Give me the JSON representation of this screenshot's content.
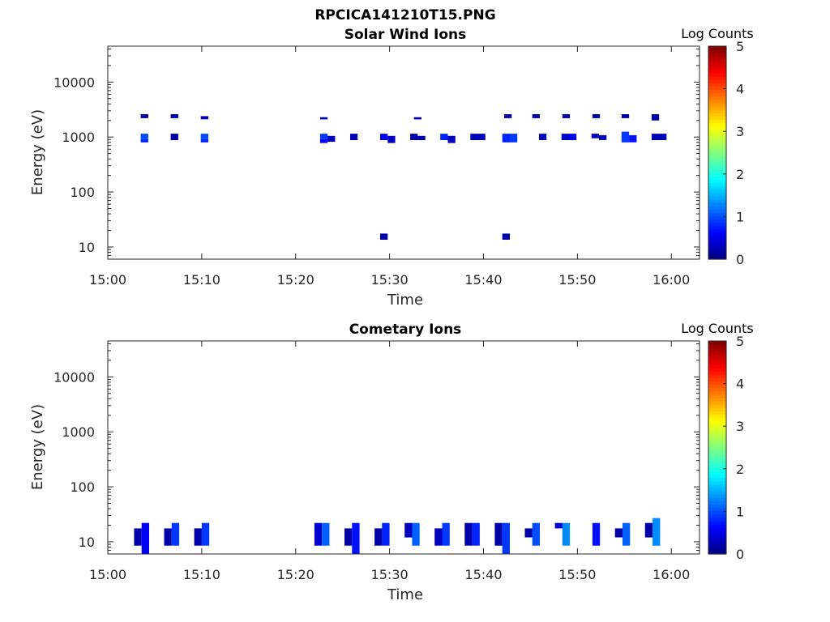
{
  "figure": {
    "title": "RPCICA141210T15.PNG"
  },
  "chart_data": [
    {
      "type": "heatmap",
      "title": "Solar Wind Ions",
      "xlabel": "Time",
      "ylabel": "Energy (eV)",
      "x_ticks": [
        "15:00",
        "15:10",
        "15:20",
        "15:30",
        "15:40",
        "15:50",
        "16:00"
      ],
      "y_ticks": [
        "10",
        "100",
        "1000",
        "10000"
      ],
      "y_scale": "log",
      "xlim_minutes": [
        0,
        63
      ],
      "ylim": [
        6,
        45000
      ],
      "colorbar": {
        "label": "Log Counts",
        "ticks": [
          "0",
          "1",
          "2",
          "3",
          "4",
          "5"
        ],
        "range": [
          0,
          5
        ],
        "colormap": "jet"
      },
      "cells": [
        {
          "t0": 3.5,
          "t1": 4.3,
          "e0": 2200,
          "e1": 2600,
          "v": 0.2
        },
        {
          "t0": 6.7,
          "t1": 7.5,
          "e0": 2200,
          "e1": 2600,
          "v": 0.2
        },
        {
          "t0": 9.9,
          "t1": 10.7,
          "e0": 2100,
          "e1": 2400,
          "v": 0.3
        },
        {
          "t0": 22.6,
          "t1": 23.4,
          "e0": 2100,
          "e1": 2300,
          "v": 0.3
        },
        {
          "t0": 32.6,
          "t1": 33.4,
          "e0": 2100,
          "e1": 2300,
          "v": 0.3
        },
        {
          "t0": 42.2,
          "t1": 43.0,
          "e0": 2200,
          "e1": 2600,
          "v": 0.2
        },
        {
          "t0": 45.2,
          "t1": 46.0,
          "e0": 2200,
          "e1": 2600,
          "v": 0.2
        },
        {
          "t0": 48.4,
          "t1": 49.2,
          "e0": 2200,
          "e1": 2600,
          "v": 0.2
        },
        {
          "t0": 51.6,
          "t1": 52.4,
          "e0": 2200,
          "e1": 2600,
          "v": 0.2
        },
        {
          "t0": 54.7,
          "t1": 55.5,
          "e0": 2200,
          "e1": 2600,
          "v": 0.2
        },
        {
          "t0": 57.9,
          "t1": 58.7,
          "e0": 2000,
          "e1": 2600,
          "v": 0.2
        },
        {
          "t0": 3.5,
          "t1": 4.3,
          "e0": 800,
          "e1": 920,
          "v": 0.8
        },
        {
          "t0": 3.5,
          "t1": 4.3,
          "e0": 920,
          "e1": 1150,
          "v": 1.0
        },
        {
          "t0": 6.7,
          "t1": 7.5,
          "e0": 880,
          "e1": 1150,
          "v": 0.2
        },
        {
          "t0": 9.9,
          "t1": 10.7,
          "e0": 800,
          "e1": 920,
          "v": 0.8
        },
        {
          "t0": 9.9,
          "t1": 10.7,
          "e0": 920,
          "e1": 1150,
          "v": 1.0
        },
        {
          "t0": 22.6,
          "t1": 23.4,
          "e0": 920,
          "e1": 1150,
          "v": 0.9
        },
        {
          "t0": 22.6,
          "t1": 23.4,
          "e0": 780,
          "e1": 920,
          "v": 0.6
        },
        {
          "t0": 23.4,
          "t1": 24.2,
          "e0": 820,
          "e1": 1050,
          "v": 0.3
        },
        {
          "t0": 25.8,
          "t1": 26.6,
          "e0": 880,
          "e1": 1150,
          "v": 0.3
        },
        {
          "t0": 29.0,
          "t1": 29.8,
          "e0": 880,
          "e1": 1150,
          "v": 0.6
        },
        {
          "t0": 29.8,
          "t1": 30.6,
          "e0": 780,
          "e1": 1050,
          "v": 0.3
        },
        {
          "t0": 32.2,
          "t1": 33.0,
          "e0": 880,
          "e1": 1150,
          "v": 0.2
        },
        {
          "t0": 33.0,
          "t1": 33.8,
          "e0": 880,
          "e1": 1050,
          "v": 0.2
        },
        {
          "t0": 35.4,
          "t1": 36.2,
          "e0": 880,
          "e1": 1150,
          "v": 0.8
        },
        {
          "t0": 36.2,
          "t1": 37.0,
          "e0": 780,
          "e1": 1050,
          "v": 0.3
        },
        {
          "t0": 38.6,
          "t1": 40.2,
          "e0": 880,
          "e1": 1150,
          "v": 0.3
        },
        {
          "t0": 42.0,
          "t1": 42.8,
          "e0": 800,
          "e1": 1150,
          "v": 0.8
        },
        {
          "t0": 42.8,
          "t1": 43.6,
          "e0": 800,
          "e1": 1150,
          "v": 0.9
        },
        {
          "t0": 45.9,
          "t1": 46.7,
          "e0": 880,
          "e1": 1150,
          "v": 0.3
        },
        {
          "t0": 48.3,
          "t1": 49.1,
          "e0": 880,
          "e1": 1150,
          "v": 0.4
        },
        {
          "t0": 49.1,
          "t1": 49.9,
          "e0": 880,
          "e1": 1150,
          "v": 0.6
        },
        {
          "t0": 51.5,
          "t1": 52.3,
          "e0": 950,
          "e1": 1150,
          "v": 0.3
        },
        {
          "t0": 52.3,
          "t1": 53.1,
          "e0": 880,
          "e1": 1080,
          "v": 0.3
        },
        {
          "t0": 54.7,
          "t1": 55.5,
          "e0": 800,
          "e1": 1250,
          "v": 0.9
        },
        {
          "t0": 55.5,
          "t1": 56.3,
          "e0": 800,
          "e1": 1080,
          "v": 0.7
        },
        {
          "t0": 57.9,
          "t1": 59.5,
          "e0": 880,
          "e1": 1150,
          "v": 0.3
        },
        {
          "t0": 29.0,
          "t1": 29.8,
          "e0": 13.5,
          "e1": 17.5,
          "v": 0.2
        },
        {
          "t0": 42.0,
          "t1": 42.8,
          "e0": 13.5,
          "e1": 17.5,
          "v": 0.2
        }
      ]
    },
    {
      "type": "heatmap",
      "title": "Cometary Ions",
      "xlabel": "Time",
      "ylabel": "Energy (eV)",
      "x_ticks": [
        "15:00",
        "15:10",
        "15:20",
        "15:30",
        "15:40",
        "15:50",
        "16:00"
      ],
      "y_ticks": [
        "10",
        "100",
        "1000",
        "10000"
      ],
      "y_scale": "log",
      "xlim_minutes": [
        0,
        63
      ],
      "ylim": [
        6,
        45000
      ],
      "colorbar": {
        "label": "Log Counts",
        "ticks": [
          "0",
          "1",
          "2",
          "3",
          "4",
          "5"
        ],
        "range": [
          0,
          5
        ],
        "colormap": "jet"
      },
      "cells": [
        {
          "t0": 2.8,
          "t1": 3.6,
          "e0": 8.5,
          "e1": 17.5,
          "v": 0.2
        },
        {
          "t0": 3.6,
          "t1": 4.4,
          "e0": 6.0,
          "e1": 22.0,
          "v": 0.6
        },
        {
          "t0": 6.0,
          "t1": 6.8,
          "e0": 8.5,
          "e1": 17.5,
          "v": 0.2
        },
        {
          "t0": 6.8,
          "t1": 7.6,
          "e0": 8.5,
          "e1": 22.0,
          "v": 0.9
        },
        {
          "t0": 9.2,
          "t1": 10.0,
          "e0": 8.5,
          "e1": 17.5,
          "v": 0.2
        },
        {
          "t0": 10.0,
          "t1": 10.8,
          "e0": 8.5,
          "e1": 22.0,
          "v": 0.9
        },
        {
          "t0": 22.0,
          "t1": 22.8,
          "e0": 8.5,
          "e1": 22.0,
          "v": 0.4
        },
        {
          "t0": 22.8,
          "t1": 23.6,
          "e0": 8.5,
          "e1": 22.0,
          "v": 1.1
        },
        {
          "t0": 25.2,
          "t1": 26.0,
          "e0": 8.5,
          "e1": 17.5,
          "v": 0.2
        },
        {
          "t0": 26.0,
          "t1": 26.8,
          "e0": 6.0,
          "e1": 22.0,
          "v": 0.7
        },
        {
          "t0": 28.4,
          "t1": 29.2,
          "e0": 8.5,
          "e1": 17.5,
          "v": 0.2
        },
        {
          "t0": 29.2,
          "t1": 30.0,
          "e0": 8.5,
          "e1": 22.0,
          "v": 0.8
        },
        {
          "t0": 31.6,
          "t1": 32.4,
          "e0": 12.0,
          "e1": 22.0,
          "v": 0.3
        },
        {
          "t0": 32.4,
          "t1": 33.2,
          "e0": 8.5,
          "e1": 22.0,
          "v": 1.1
        },
        {
          "t0": 34.8,
          "t1": 35.6,
          "e0": 8.5,
          "e1": 17.5,
          "v": 0.3
        },
        {
          "t0": 35.6,
          "t1": 36.4,
          "e0": 8.5,
          "e1": 22.0,
          "v": 0.9
        },
        {
          "t0": 38.0,
          "t1": 38.8,
          "e0": 8.5,
          "e1": 22.0,
          "v": 0.2
        },
        {
          "t0": 38.8,
          "t1": 39.6,
          "e0": 8.5,
          "e1": 22.0,
          "v": 0.8
        },
        {
          "t0": 41.2,
          "t1": 42.0,
          "e0": 8.5,
          "e1": 22.0,
          "v": 0.2
        },
        {
          "t0": 42.0,
          "t1": 42.8,
          "e0": 6.0,
          "e1": 22.0,
          "v": 0.9
        },
        {
          "t0": 44.4,
          "t1": 45.2,
          "e0": 12.0,
          "e1": 17.5,
          "v": 0.2
        },
        {
          "t0": 45.2,
          "t1": 46.0,
          "e0": 8.5,
          "e1": 22.0,
          "v": 1.0
        },
        {
          "t0": 47.6,
          "t1": 48.4,
          "e0": 17.5,
          "e1": 22.0,
          "v": 0.4
        },
        {
          "t0": 48.4,
          "t1": 49.2,
          "e0": 8.5,
          "e1": 22.0,
          "v": 1.3
        },
        {
          "t0": 51.6,
          "t1": 52.4,
          "e0": 8.5,
          "e1": 22.0,
          "v": 0.7
        },
        {
          "t0": 54.0,
          "t1": 54.8,
          "e0": 12.0,
          "e1": 17.5,
          "v": 0.2
        },
        {
          "t0": 54.8,
          "t1": 55.6,
          "e0": 8.5,
          "e1": 22.0,
          "v": 1.1
        },
        {
          "t0": 57.2,
          "t1": 58.0,
          "e0": 12.0,
          "e1": 22.0,
          "v": 0.2
        },
        {
          "t0": 58.0,
          "t1": 58.8,
          "e0": 8.5,
          "e1": 27.0,
          "v": 1.3
        }
      ]
    }
  ]
}
